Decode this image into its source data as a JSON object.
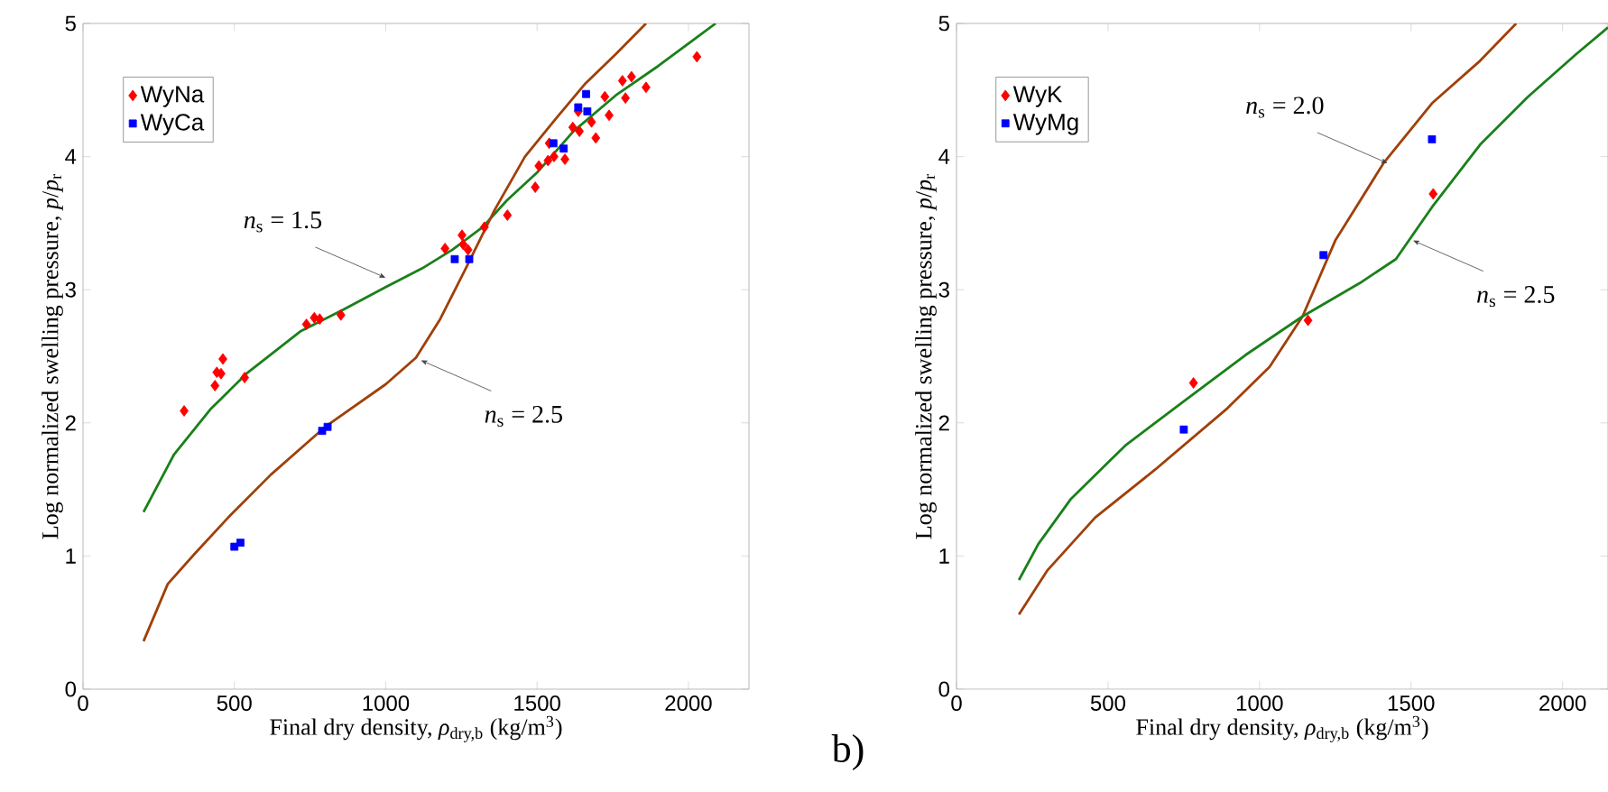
{
  "chart_data": [
    {
      "type": "scatter",
      "xlabel": "Final dry density, *ρ*$_{dry,b}$ (kg/m$^{3}$)",
      "ylabel": "Log normalized swelling pressure, *p*/*p*$_{r}$",
      "xlim": [
        0,
        2200
      ],
      "ylim": [
        0,
        5
      ],
      "xticks": [
        0,
        500,
        1000,
        1500,
        2000
      ],
      "yticks": [
        0,
        1,
        2,
        3,
        4,
        5
      ],
      "legend": "top left",
      "grid": false,
      "series": [
        {
          "name": "WyNa",
          "color": "#ff0000",
          "marker": "diamond",
          "x": [
            334,
            436,
            442,
            456,
            462,
            534,
            738,
            764,
            782,
            852,
            1196,
            1252,
            1256,
            1272,
            1326,
            1402,
            1494,
            1506,
            1536,
            1556,
            1592,
            1540,
            1618,
            1640,
            1636,
            1680,
            1694,
            1724,
            1738,
            1782,
            1792,
            1812,
            1860,
            2028
          ],
          "values": [
            2.09,
            2.28,
            2.38,
            2.37,
            2.48,
            2.34,
            2.74,
            2.79,
            2.78,
            2.81,
            3.31,
            3.41,
            3.34,
            3.3,
            3.47,
            3.56,
            3.77,
            3.93,
            3.97,
            4.0,
            3.98,
            4.1,
            4.22,
            4.19,
            4.34,
            4.26,
            4.14,
            4.45,
            4.31,
            4.57,
            4.44,
            4.6,
            4.52,
            4.75
          ]
        },
        {
          "name": "WyCa",
          "color": "#0000ff",
          "marker": "square",
          "x": [
            500,
            520,
            790,
            808,
            1228,
            1276,
            1554,
            1588,
            1636,
            1662,
            1666
          ],
          "values": [
            1.07,
            1.1,
            1.94,
            1.97,
            3.23,
            3.23,
            4.1,
            4.06,
            4.37,
            4.47,
            4.34
          ]
        },
        {
          "type": "line",
          "color": "#1a801a",
          "marker": "none",
          "x": [
            200,
            300,
            420,
            540,
            720,
            860,
            1000,
            1120,
            1220,
            1320,
            1400,
            1500,
            1620,
            1760,
            1900,
            2090
          ],
          "values": [
            1.33,
            1.76,
            2.1,
            2.37,
            2.69,
            2.85,
            3.02,
            3.16,
            3.3,
            3.47,
            3.67,
            3.88,
            4.19,
            4.46,
            4.68,
            5.0
          ]
        },
        {
          "type": "line",
          "color": "#a0400a",
          "marker": "none",
          "x": [
            200,
            280,
            370,
            480,
            620,
            800,
            1000,
            1100,
            1180,
            1260,
            1360,
            1460,
            1560,
            1660,
            1760,
            1860
          ],
          "values": [
            0.36,
            0.79,
            1.02,
            1.29,
            1.61,
            1.97,
            2.29,
            2.49,
            2.78,
            3.14,
            3.6,
            4.0,
            4.28,
            4.55,
            4.77,
            5.0
          ]
        }
      ],
      "annotations": [
        {
          "text": "*n*$_{s}$ = 1.5",
          "x": 1000,
          "y": 3.09
        },
        {
          "text": "*n*$_{s}$ = 2.5",
          "x": 1116,
          "y": 2.47
        }
      ]
    },
    {
      "type": "scatter",
      "xlabel": "Final dry density, *ρ*$_{dry,b}$ (kg/m$^{3}$)",
      "ylabel": "Log normalized swelling pressure, *p*/*p*$_{r}$",
      "xlim": [
        0,
        2150
      ],
      "ylim": [
        0,
        5
      ],
      "xticks": [
        0,
        500,
        1000,
        1500,
        2000
      ],
      "yticks": [
        0,
        1,
        2,
        3,
        4,
        5
      ],
      "legend": "top left",
      "grid": false,
      "series": [
        {
          "name": "WyK",
          "color": "#ff0000",
          "marker": "diamond",
          "x": [
            782,
            1160,
            1573
          ],
          "values": [
            2.3,
            2.77,
            3.72
          ]
        },
        {
          "name": "WyMg",
          "color": "#0000ff",
          "marker": "square",
          "x": [
            750,
            1211,
            1569
          ],
          "values": [
            1.95,
            3.26,
            4.13
          ]
        },
        {
          "type": "line",
          "color": "#a0400a",
          "marker": "none",
          "x": [
            206,
            299,
            458,
            656,
            894,
            1033,
            1142,
            1250,
            1409,
            1569,
            1728,
            1847
          ],
          "values": [
            0.56,
            0.89,
            1.29,
            1.65,
            2.11,
            2.42,
            2.8,
            3.37,
            3.95,
            4.4,
            4.72,
            5.0
          ]
        },
        {
          "type": "line",
          "color": "#1a801a",
          "marker": "none",
          "x": [
            206,
            270,
            378,
            557,
            755,
            954,
            1142,
            1331,
            1450,
            1569,
            1728,
            1886,
            2045,
            2150
          ],
          "values": [
            0.82,
            1.09,
            1.43,
            1.83,
            2.17,
            2.51,
            2.8,
            3.05,
            3.23,
            3.62,
            4.09,
            4.45,
            4.77,
            4.97
          ]
        }
      ],
      "annotations": [
        {
          "text": "*n*$_{s}$ = 2.0",
          "x": 1423,
          "y": 3.95
        },
        {
          "text": "*n*$_{s}$ = 2.5",
          "x": 1506,
          "y": 3.37
        },
        "b)"
      ]
    }
  ]
}
